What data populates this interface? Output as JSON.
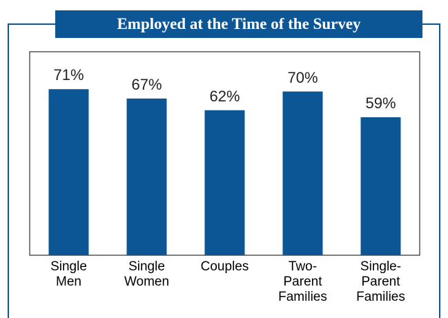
{
  "chart_data": {
    "type": "bar",
    "title": "Employed at the Time of the Survey",
    "categories": [
      "Single Men",
      "Single Women",
      "Couples",
      "Two-Parent Families",
      "Single-Parent Families"
    ],
    "values": [
      71,
      67,
      62,
      70,
      59
    ],
    "value_labels": [
      "71%",
      "67%",
      "62%",
      "70%",
      "59%"
    ],
    "color": "#0d5696",
    "ylim": [
      0,
      87
    ]
  }
}
